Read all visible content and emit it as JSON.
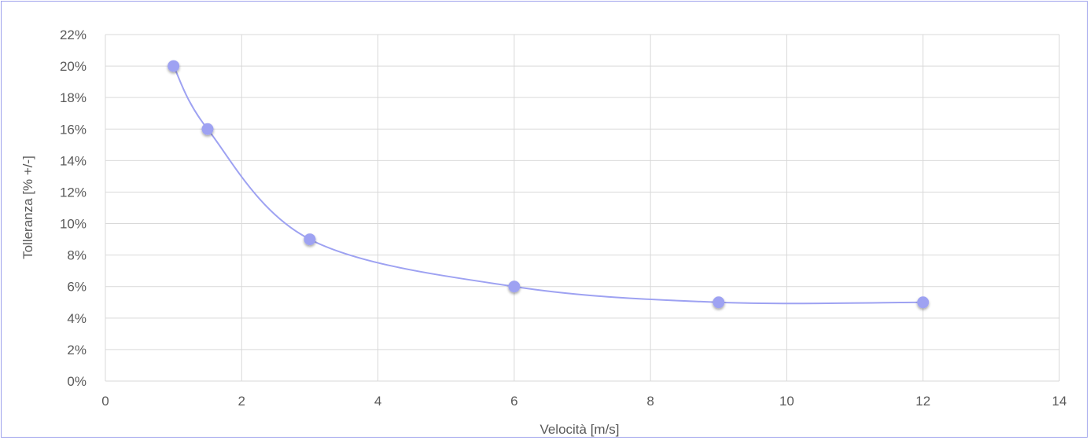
{
  "chart_data": {
    "type": "scatter",
    "title": "",
    "xlabel": "Velocità [m/s]",
    "ylabel": "Tolleranza [% +/-]",
    "xlim": [
      0,
      14
    ],
    "ylim": [
      0,
      0.22
    ],
    "x_ticks": [
      0,
      2,
      4,
      6,
      8,
      10,
      12,
      14
    ],
    "y_ticks": [
      0,
      0.02,
      0.04,
      0.06,
      0.08,
      0.1,
      0.12,
      0.14,
      0.16,
      0.18,
      0.2,
      0.22
    ],
    "y_tick_labels": [
      "0%",
      "2%",
      "4%",
      "6%",
      "8%",
      "10%",
      "12%",
      "14%",
      "16%",
      "18%",
      "20%",
      "22%"
    ],
    "grid": true,
    "smoothed_line": true,
    "series": [
      {
        "x": [
          1,
          1.5,
          3,
          6,
          9,
          12
        ],
        "y": [
          0.2,
          0.16,
          0.09,
          0.06,
          0.05,
          0.05
        ],
        "color": "#9ea2f2"
      }
    ]
  }
}
